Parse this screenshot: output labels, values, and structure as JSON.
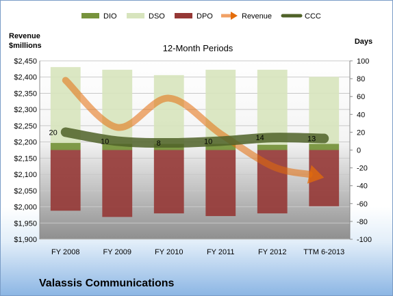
{
  "company": "Valassis Communications",
  "left_axis_title_line1": "Revenue",
  "left_axis_title_line2": "$millions",
  "right_axis_title": "Days",
  "colors": {
    "dio": "#77933c",
    "dso": "#d7e4bd",
    "dpo": "#953735",
    "revenue": "#e46c0a",
    "ccc": "#4f6228"
  },
  "chart_data": {
    "type": "bar",
    "title": "12-Month Periods",
    "categories": [
      "FY 2008",
      "FY 2009",
      "FY 2010",
      "FY 2011",
      "FY 2012",
      "TTM 6-2013"
    ],
    "legend": [
      "DIO",
      "DSO",
      "DPO",
      "Revenue",
      "CCC"
    ],
    "legend_position": "top",
    "left_axis": {
      "min": 1900,
      "max": 2450,
      "step": 50,
      "ticks": [
        "$1,900",
        "$1,950",
        "$2,000",
        "$2,050",
        "$2,100",
        "$2,150",
        "$2,200",
        "$2,250",
        "$2,300",
        "$2,350",
        "$2,400",
        "$2,450"
      ]
    },
    "right_axis": {
      "min": -100,
      "max": 100,
      "step": 20,
      "ticks": [
        "-100",
        "-80",
        "-60",
        "-40",
        "-20",
        "0",
        "20",
        "40",
        "60",
        "80",
        "100"
      ]
    },
    "series": [
      {
        "name": "DIO",
        "axis": "right",
        "values": [
          8,
          7,
          7,
          7,
          6,
          7
        ]
      },
      {
        "name": "DSO",
        "axis": "right",
        "values": [
          85,
          83,
          77,
          83,
          84,
          75
        ]
      },
      {
        "name": "DPO",
        "axis": "right",
        "values": [
          -68,
          -75,
          -71,
          -74,
          -71,
          -63
        ]
      },
      {
        "name": "Revenue",
        "axis": "left",
        "values": [
          2390,
          2245,
          2335,
          2225,
          2125,
          2090
        ]
      },
      {
        "name": "CCC",
        "axis": "right",
        "values": [
          20,
          10,
          8,
          10,
          14,
          13
        ]
      }
    ],
    "ccc_labels": [
      "20",
      "10",
      "8",
      "10",
      "14",
      "13"
    ],
    "grid": true
  }
}
